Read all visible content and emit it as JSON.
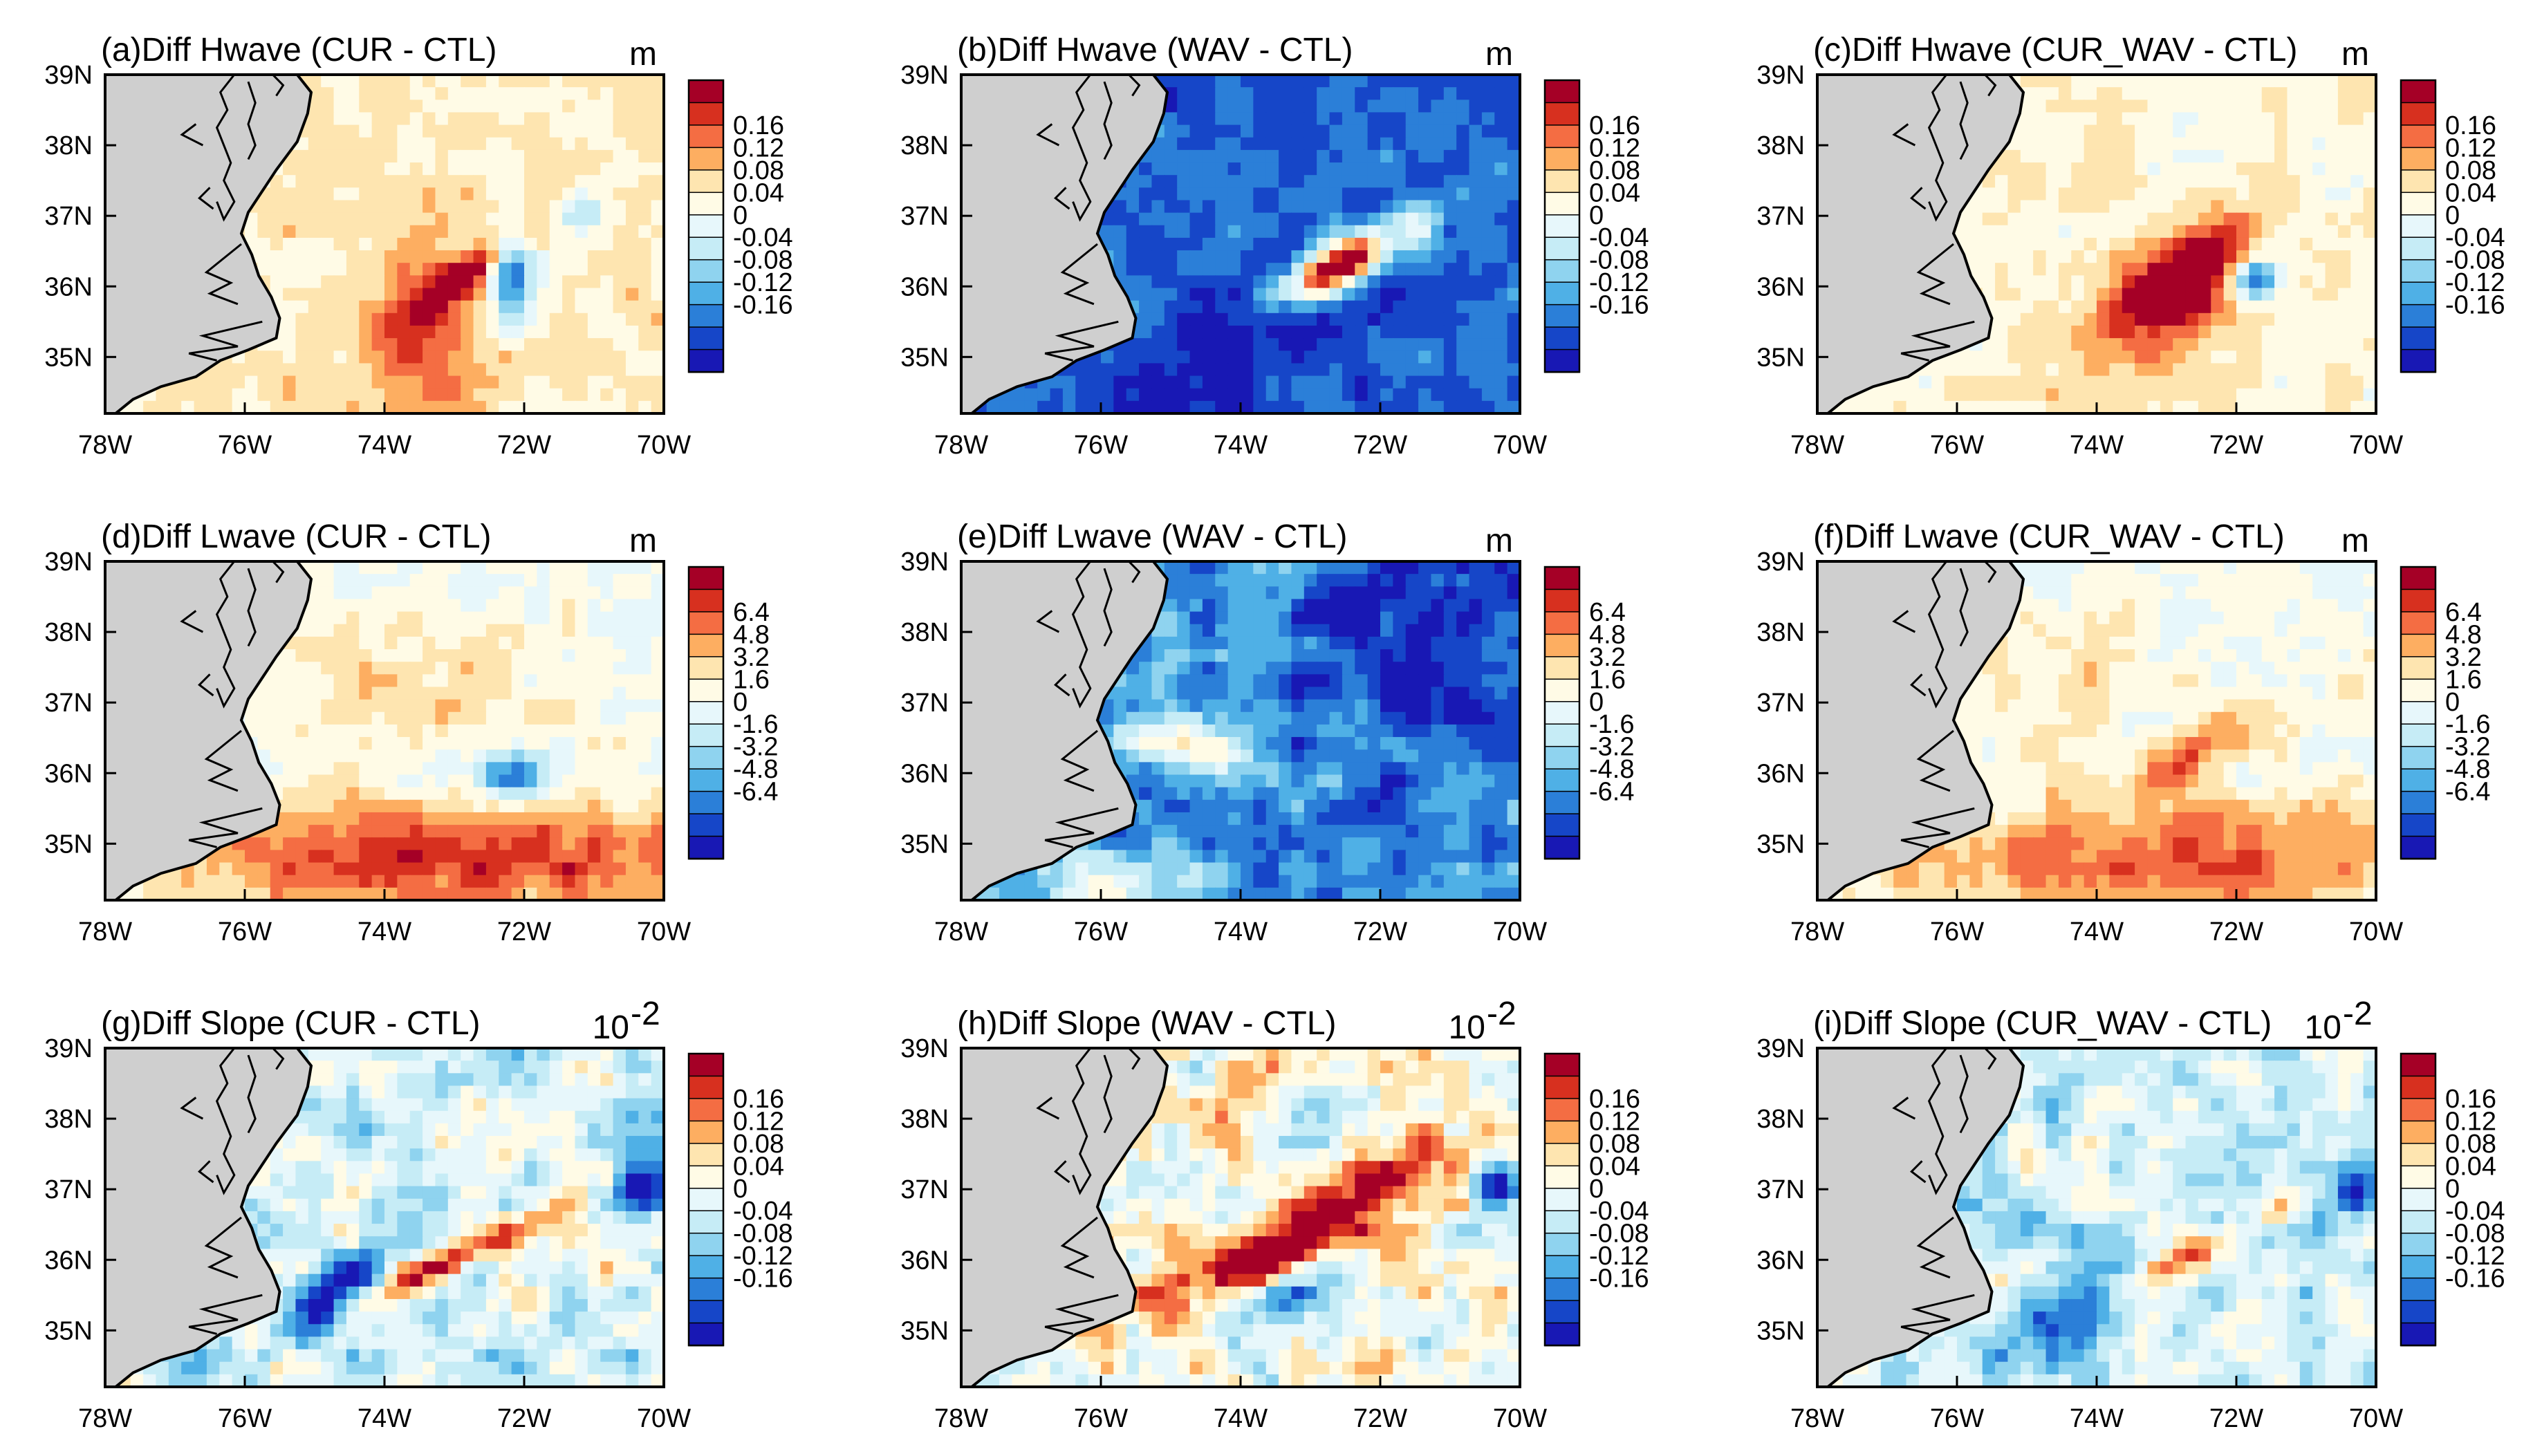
{
  "figure": {
    "layout": "3 rows x 3 columns of filled contour maps",
    "region": "US Mid-Atlantic coast",
    "x_ticks": [
      "78W",
      "76W",
      "74W",
      "72W",
      "70W"
    ],
    "y_ticks": [
      "39N",
      "38N",
      "37N",
      "36N",
      "35N"
    ]
  },
  "colorbars": {
    "hwave": [
      "0.16",
      "0.12",
      "0.08",
      "0.04",
      "0",
      "-0.04",
      "-0.08",
      "-0.12",
      "-0.16"
    ],
    "lwave": [
      "6.4",
      "4.8",
      "3.2",
      "1.6",
      "0",
      "-1.6",
      "-3.2",
      "-4.8",
      "-6.4"
    ],
    "slope": [
      "0.16",
      "0.12",
      "0.08",
      "0.04",
      "0",
      "-0.04",
      "-0.08",
      "-0.12",
      "-0.16"
    ]
  },
  "palette": [
    "#a50026",
    "#d7301f",
    "#f46d43",
    "#fdae61",
    "#fee5b0",
    "#fffbe6",
    "#e7f7fb",
    "#c6ecf6",
    "#8fd3ef",
    "#4fb0e6",
    "#2b7fd8",
    "#1646c8",
    "#1818b4"
  ],
  "land_color": "#cfcfcf",
  "chart_data": [
    {
      "id": "a",
      "type": "heatmap",
      "title": "(a)Diff Hwave (CUR - CTL)",
      "unit": "m",
      "colorbar": "hwave",
      "bias": 0.04,
      "noise": 0.03,
      "features": [
        [
          -72.8,
          36.2,
          0.18,
          0.55,
          0.13,
          35
        ],
        [
          -72.2,
          36.15,
          0.45,
          0.22,
          -0.16,
          0
        ],
        [
          -73.5,
          35.3,
          0.9,
          0.6,
          0.07,
          0
        ],
        [
          -71.2,
          37.1,
          0.2,
          0.2,
          -0.08,
          0
        ]
      ]
    },
    {
      "id": "b",
      "type": "heatmap",
      "title": "(b)Diff Hwave (WAV - CTL)",
      "unit": "m",
      "colorbar": "hwave",
      "bias": -0.11,
      "noise": 0.04,
      "features": [
        [
          -72.6,
          36.3,
          0.22,
          0.55,
          0.3,
          30
        ],
        [
          -74.5,
          34.8,
          0.5,
          1.2,
          -0.05,
          35
        ],
        [
          -71.5,
          36.9,
          0.25,
          0.25,
          0.1,
          0
        ]
      ]
    },
    {
      "id": "c",
      "type": "heatmap",
      "title": "(c)Diff Hwave (CUR_WAV - CTL)",
      "unit": "m",
      "colorbar": "hwave",
      "bias": 0.03,
      "noise": 0.03,
      "features": [
        [
          -72.7,
          36.3,
          0.25,
          0.9,
          0.13,
          35
        ],
        [
          -72.7,
          35.85,
          0.35,
          0.35,
          0.14,
          0
        ],
        [
          -71.7,
          36.1,
          0.2,
          0.2,
          -0.15,
          0
        ],
        [
          -73.5,
          35.3,
          0.8,
          0.6,
          0.05,
          0
        ]
      ]
    },
    {
      "id": "d",
      "type": "heatmap",
      "title": "(d)Diff Lwave (CUR - CTL)",
      "unit": "m",
      "colorbar": "lwave",
      "bias": 0.6,
      "noise": 1.4,
      "features": [
        [
          -73.0,
          34.8,
          0.55,
          3.0,
          4.5,
          0
        ],
        [
          -72.2,
          36.0,
          0.25,
          0.4,
          -5.0,
          0
        ],
        [
          -73.5,
          37.2,
          0.7,
          1.5,
          1.5,
          0
        ]
      ]
    },
    {
      "id": "e",
      "type": "heatmap",
      "title": "(e)Diff Lwave (WAV - CTL)",
      "unit": "m",
      "colorbar": "lwave",
      "bias": -3.5,
      "noise": 2.2,
      "features": [
        [
          -74.8,
          36.4,
          0.6,
          0.22,
          6.0,
          80
        ],
        [
          -71.5,
          37.8,
          1.0,
          1.2,
          -2.5,
          0
        ],
        [
          -75.8,
          34.4,
          0.35,
          0.9,
          4.0,
          0
        ]
      ]
    },
    {
      "id": "f",
      "type": "heatmap",
      "title": "(f)Diff Lwave (CUR_WAV - CTL)",
      "unit": "m",
      "colorbar": "lwave",
      "bias": 0.6,
      "noise": 1.3,
      "features": [
        [
          -73.0,
          34.8,
          0.55,
          3.0,
          3.8,
          0
        ],
        [
          -72.5,
          36.3,
          0.2,
          0.7,
          3.0,
          30
        ],
        [
          -74.5,
          37.3,
          0.7,
          1.5,
          1.2,
          0
        ]
      ]
    },
    {
      "id": "g",
      "type": "heatmap",
      "title": "(g)Diff Slope (CUR - CTL)",
      "unit": "10",
      "unit_sup": "-2",
      "colorbar": "slope",
      "bias": -0.01,
      "noise": 0.08,
      "features": [
        [
          -73.0,
          36.0,
          0.15,
          1.1,
          0.13,
          25
        ],
        [
          -74.8,
          35.4,
          0.3,
          0.6,
          -0.14,
          40
        ],
        [
          -70.3,
          37.0,
          0.25,
          0.25,
          -0.16,
          0
        ]
      ]
    },
    {
      "id": "h",
      "type": "heatmap",
      "title": "(h)Diff Slope (WAV - CTL)",
      "unit": "10",
      "unit_sup": "-2",
      "colorbar": "slope",
      "bias": 0.02,
      "noise": 0.09,
      "features": [
        [
          -72.6,
          36.6,
          0.25,
          1.4,
          0.16,
          35
        ],
        [
          -74.3,
          36.0,
          0.3,
          0.8,
          0.12,
          15
        ],
        [
          -70.3,
          37.0,
          0.25,
          0.25,
          -0.16,
          0
        ],
        [
          -73.4,
          35.5,
          0.3,
          0.5,
          -0.12,
          20
        ]
      ]
    },
    {
      "id": "i",
      "type": "heatmap",
      "title": "(i)Diff Slope (CUR_WAV - CTL)",
      "unit": "10",
      "unit_sup": "-2",
      "colorbar": "slope",
      "bias": -0.01,
      "noise": 0.07,
      "features": [
        [
          -72.6,
          36.1,
          0.15,
          1.0,
          0.1,
          25
        ],
        [
          -74.5,
          35.2,
          0.3,
          0.9,
          -0.13,
          35
        ],
        [
          -70.3,
          37.0,
          0.25,
          0.25,
          -0.16,
          0
        ]
      ]
    }
  ]
}
